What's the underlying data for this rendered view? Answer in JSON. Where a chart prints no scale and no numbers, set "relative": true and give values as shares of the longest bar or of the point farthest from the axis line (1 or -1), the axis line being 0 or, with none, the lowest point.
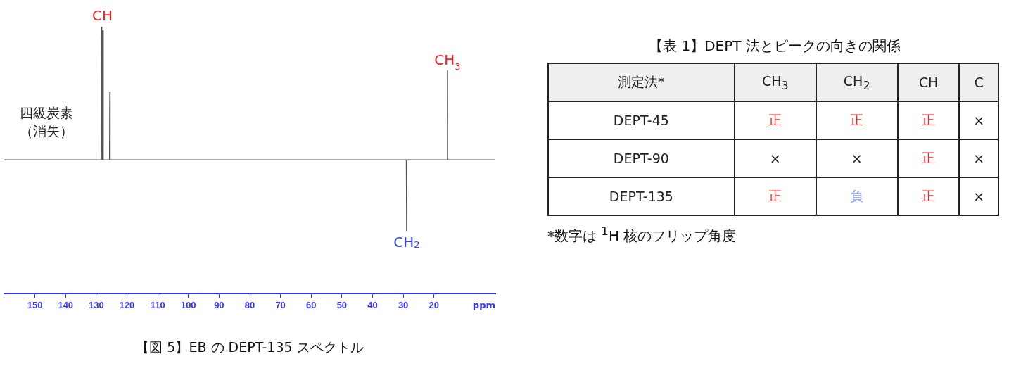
{
  "chart_data": [
    {
      "type": "line",
      "title": "【図 5】EB の DEPT-135 スペクトル",
      "xlabel": "ppm",
      "relative": true,
      "xlim": [
        160,
        0
      ],
      "xticks": [
        150,
        140,
        130,
        120,
        110,
        100,
        90,
        80,
        70,
        60,
        50,
        40,
        30,
        20
      ],
      "grid": false,
      "legend": false,
      "marker": "none",
      "series": [
        {
          "color": "#555555",
          "x": [
            160,
            128.4,
            128.2,
            128.05,
            127.9,
            127.75,
            125.7,
            125.6,
            125.5,
            29.0,
            28.9,
            28.8,
            15.7,
            15.6,
            15.5,
            0
          ],
          "values": [
            0,
            0,
            1,
            0,
            0.97,
            0,
            0,
            0.51,
            0,
            0,
            -0.53,
            0,
            0,
            0.67,
            0,
            0
          ]
        }
      ],
      "annotations": [
        {
          "text": "CH",
          "x": 128,
          "y": 1
        },
        {
          "text": "CH$_{3}$",
          "x": 15.6,
          "y": 0.67
        },
        {
          "text": "CH$_{2}$",
          "x": 28.9,
          "y": -0.53
        },
        "四級炭素",
        "（消失）"
      ]
    },
    {
      "type": "other",
      "title": "【表 1】DEPT 法とピークの向きの関係",
      "categories": [
        "測定法*",
        "CH$_{3}$",
        "CH$_{2}$",
        "CH",
        "C"
      ],
      "y_categories": [
        "DEPT-45",
        "DEPT-90",
        "DEPT-135"
      ],
      "cell_labels": [
        [
          "正",
          "正",
          "正",
          "×"
        ],
        [
          "×",
          "×",
          "正",
          "×"
        ],
        [
          "正",
          "負",
          "正",
          "×"
        ]
      ],
      "colors": [
        [
          "#ff2020",
          "#ff2020",
          "#ff2020",
          "#222222"
        ],
        [
          "#222222",
          "#222222",
          "#ff2020",
          "#222222"
        ],
        [
          "#ff2020",
          "#8899ee",
          "#ff2020",
          "#222222"
        ]
      ],
      "annotations": [
        "*数字は $^{1}$H 核のフリップ角度"
      ]
    }
  ]
}
